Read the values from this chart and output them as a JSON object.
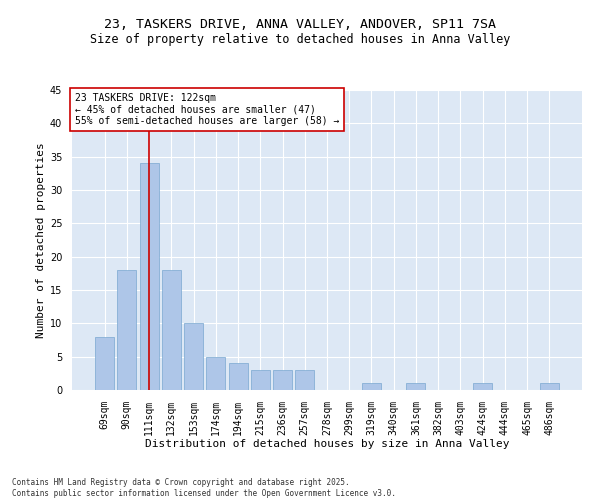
{
  "title_line1": "23, TASKERS DRIVE, ANNA VALLEY, ANDOVER, SP11 7SA",
  "title_line2": "Size of property relative to detached houses in Anna Valley",
  "xlabel": "Distribution of detached houses by size in Anna Valley",
  "ylabel": "Number of detached properties",
  "categories": [
    "69sqm",
    "90sqm",
    "111sqm",
    "132sqm",
    "153sqm",
    "174sqm",
    "194sqm",
    "215sqm",
    "236sqm",
    "257sqm",
    "278sqm",
    "299sqm",
    "319sqm",
    "340sqm",
    "361sqm",
    "382sqm",
    "403sqm",
    "424sqm",
    "444sqm",
    "465sqm",
    "486sqm"
  ],
  "values": [
    8,
    18,
    34,
    18,
    10,
    5,
    4,
    3,
    3,
    3,
    0,
    0,
    1,
    0,
    1,
    0,
    0,
    1,
    0,
    0,
    1
  ],
  "bar_color": "#aec6e8",
  "bar_edge_color": "#7aa8d0",
  "vline_x_index": 2,
  "vline_color": "#cc0000",
  "annotation_text": "23 TASKERS DRIVE: 122sqm\n← 45% of detached houses are smaller (47)\n55% of semi-detached houses are larger (58) →",
  "annotation_box_color": "#ffffff",
  "annotation_box_edge": "#cc0000",
  "ylim": [
    0,
    45
  ],
  "yticks": [
    0,
    5,
    10,
    15,
    20,
    25,
    30,
    35,
    40,
    45
  ],
  "bg_color": "#dde8f5",
  "grid_color": "#ffffff",
  "footnote": "Contains HM Land Registry data © Crown copyright and database right 2025.\nContains public sector information licensed under the Open Government Licence v3.0.",
  "title_fontsize": 9.5,
  "subtitle_fontsize": 8.5,
  "axis_label_fontsize": 8,
  "tick_fontsize": 7,
  "annotation_fontsize": 7
}
